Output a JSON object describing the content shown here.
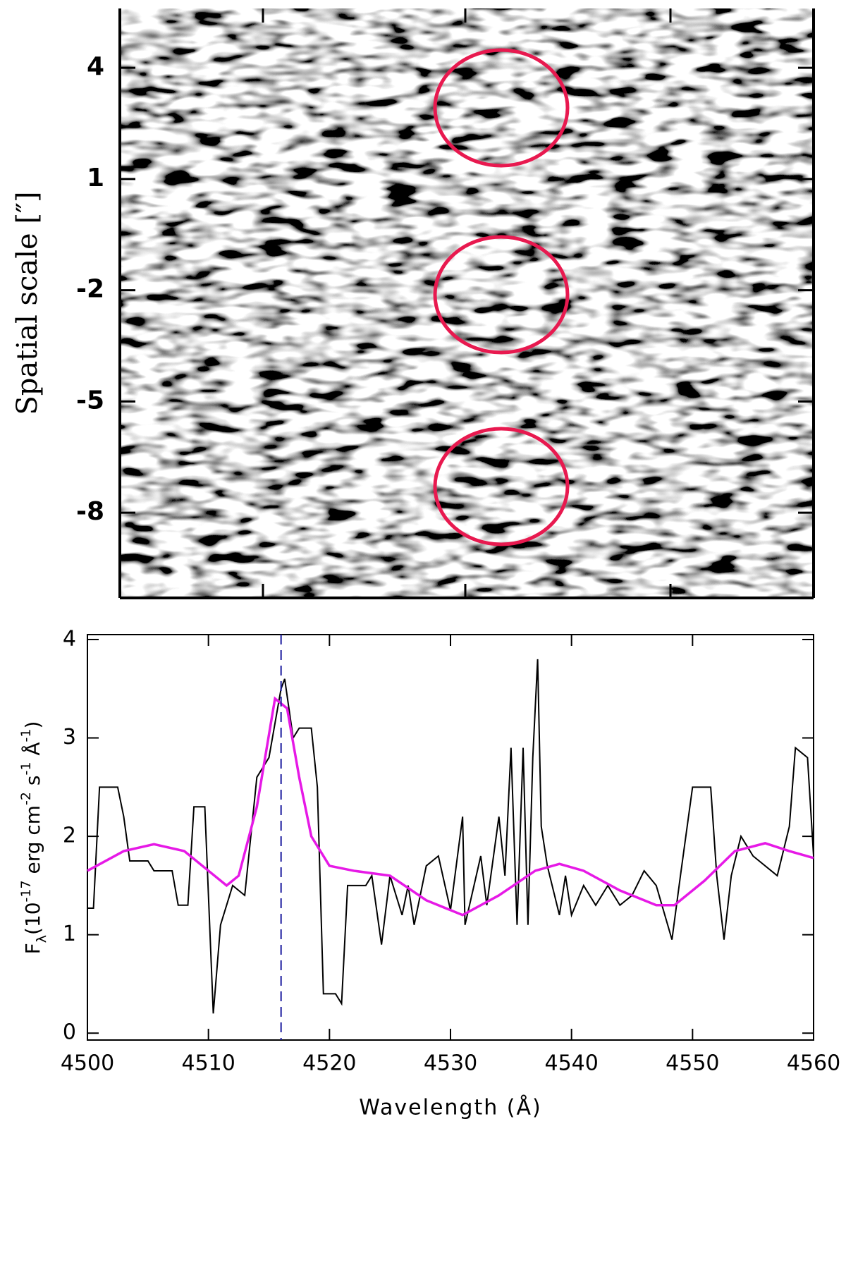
{
  "chart_data": [
    {
      "type": "image",
      "ylabel": "Spatial scale [″]",
      "ylim": [
        -10.3,
        5.6
      ],
      "yticks": [
        4,
        1,
        -2,
        -5,
        -8
      ]
    },
    {
      "type": "line",
      "xlabel": "Wavelength (Å)",
      "ylabel": [
        "F",
        "λ",
        "(10",
        "-17",
        " erg cm",
        "-2",
        " s",
        "-1",
        " Å",
        "-1",
        ")"
      ],
      "xlim": [
        4500,
        4560
      ],
      "ylim": [
        -0.07,
        4.05
      ],
      "xticks": [
        4500,
        4510,
        4520,
        4530,
        4540,
        4550,
        4560
      ],
      "yticks": [
        0,
        1,
        2,
        3,
        4
      ],
      "marker_x": 4516,
      "series": [
        {
          "color": "#000000",
          "x": [
            4500,
            4500.5,
            4501,
            4502.5,
            4503,
            4503.5,
            4505,
            4505.5,
            4507,
            4507.5,
            4508.3,
            4508.8,
            4509.7,
            4510.4,
            4511,
            4512,
            4513,
            4514,
            4515,
            4516,
            4516.3,
            4517,
            4517.5,
            4518.5,
            4519,
            4519.5,
            4520.5,
            4521,
            4521.5,
            4523,
            4523.5,
            4524.3,
            4525,
            4526,
            4526.5,
            4527,
            4528,
            4529,
            4530,
            4531,
            4531.2,
            4532.5,
            4533,
            4534,
            4534.5,
            4535,
            4535.5,
            4536,
            4536.4,
            4536.8,
            4537.2,
            4537.5,
            4538,
            4539,
            4539.5,
            4540,
            4541,
            4542,
            4543,
            4544,
            4545,
            4546,
            4547,
            4548.3,
            4549,
            4550,
            4551.5,
            4552,
            4552.6,
            4553.2,
            4554,
            4555,
            4557,
            4558,
            4558.5,
            4559.5,
            4560
          ],
          "values": [
            1.27,
            1.27,
            2.5,
            2.5,
            2.2,
            1.75,
            1.75,
            1.65,
            1.65,
            1.3,
            1.3,
            2.3,
            2.3,
            0.2,
            1.1,
            1.5,
            1.4,
            2.6,
            2.8,
            3.5,
            3.6,
            3.0,
            3.1,
            3.1,
            2.5,
            0.4,
            0.4,
            0.3,
            1.5,
            1.5,
            1.6,
            0.9,
            1.6,
            1.2,
            1.5,
            1.1,
            1.7,
            1.8,
            1.25,
            2.2,
            1.1,
            1.8,
            1.3,
            2.2,
            1.6,
            2.9,
            1.1,
            2.9,
            1.1,
            2.8,
            3.8,
            2.1,
            1.7,
            1.2,
            1.6,
            1.2,
            1.5,
            1.3,
            1.5,
            1.3,
            1.4,
            1.65,
            1.5,
            0.95,
            1.6,
            2.5,
            2.5,
            1.6,
            0.95,
            1.6,
            2.0,
            1.8,
            1.6,
            2.1,
            2.9,
            2.8,
            1.8
          ]
        },
        {
          "color": "#e619e6",
          "x": [
            4500,
            4503,
            4505.5,
            4508,
            4510,
            4511.5,
            4512.5,
            4514,
            4515.5,
            4516.5,
            4517.5,
            4518.5,
            4520,
            4522,
            4525,
            4528,
            4531,
            4534,
            4537,
            4539,
            4541,
            4544,
            4547,
            4548.5,
            4551,
            4553.5,
            4556,
            4558,
            4560
          ],
          "values": [
            1.65,
            1.85,
            1.92,
            1.85,
            1.65,
            1.5,
            1.6,
            2.3,
            3.4,
            3.3,
            2.6,
            2.0,
            1.7,
            1.65,
            1.6,
            1.35,
            1.2,
            1.4,
            1.65,
            1.72,
            1.65,
            1.45,
            1.3,
            1.3,
            1.55,
            1.85,
            1.93,
            1.85,
            1.78
          ]
        }
      ]
    }
  ]
}
